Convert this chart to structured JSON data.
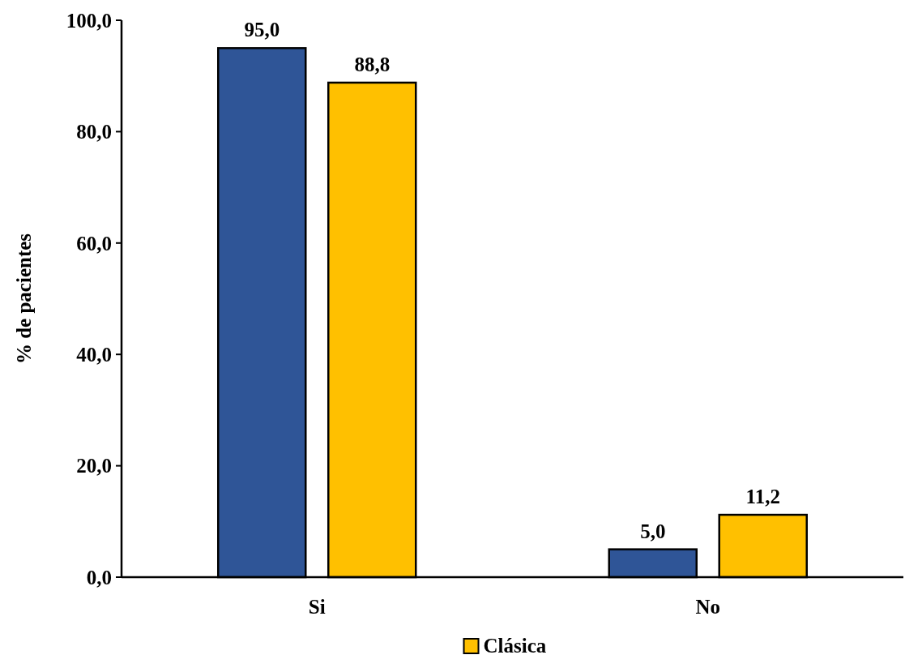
{
  "chart_data": {
    "type": "bar",
    "ylabel": "% de pacientes",
    "categories": [
      "Si",
      "No"
    ],
    "series": [
      {
        "color": "#2f5597",
        "values": [
          95.0,
          5.0
        ],
        "value_labels": [
          "95,0",
          "5,0"
        ]
      },
      {
        "name": "Clásica",
        "color": "#ffc000",
        "values": [
          88.8,
          11.2
        ],
        "value_labels": [
          "88,8",
          "11,2"
        ]
      }
    ],
    "ylim": [
      0,
      100
    ],
    "yticks": [
      {
        "value": 0,
        "label": "0,0"
      },
      {
        "value": 20,
        "label": "20,0"
      },
      {
        "value": 40,
        "label": "40,0"
      },
      {
        "value": 60,
        "label": "60,0"
      },
      {
        "value": 80,
        "label": "80,0"
      },
      {
        "value": 100,
        "label": "100,0"
      }
    ],
    "legend": "bottom",
    "grid": false
  }
}
